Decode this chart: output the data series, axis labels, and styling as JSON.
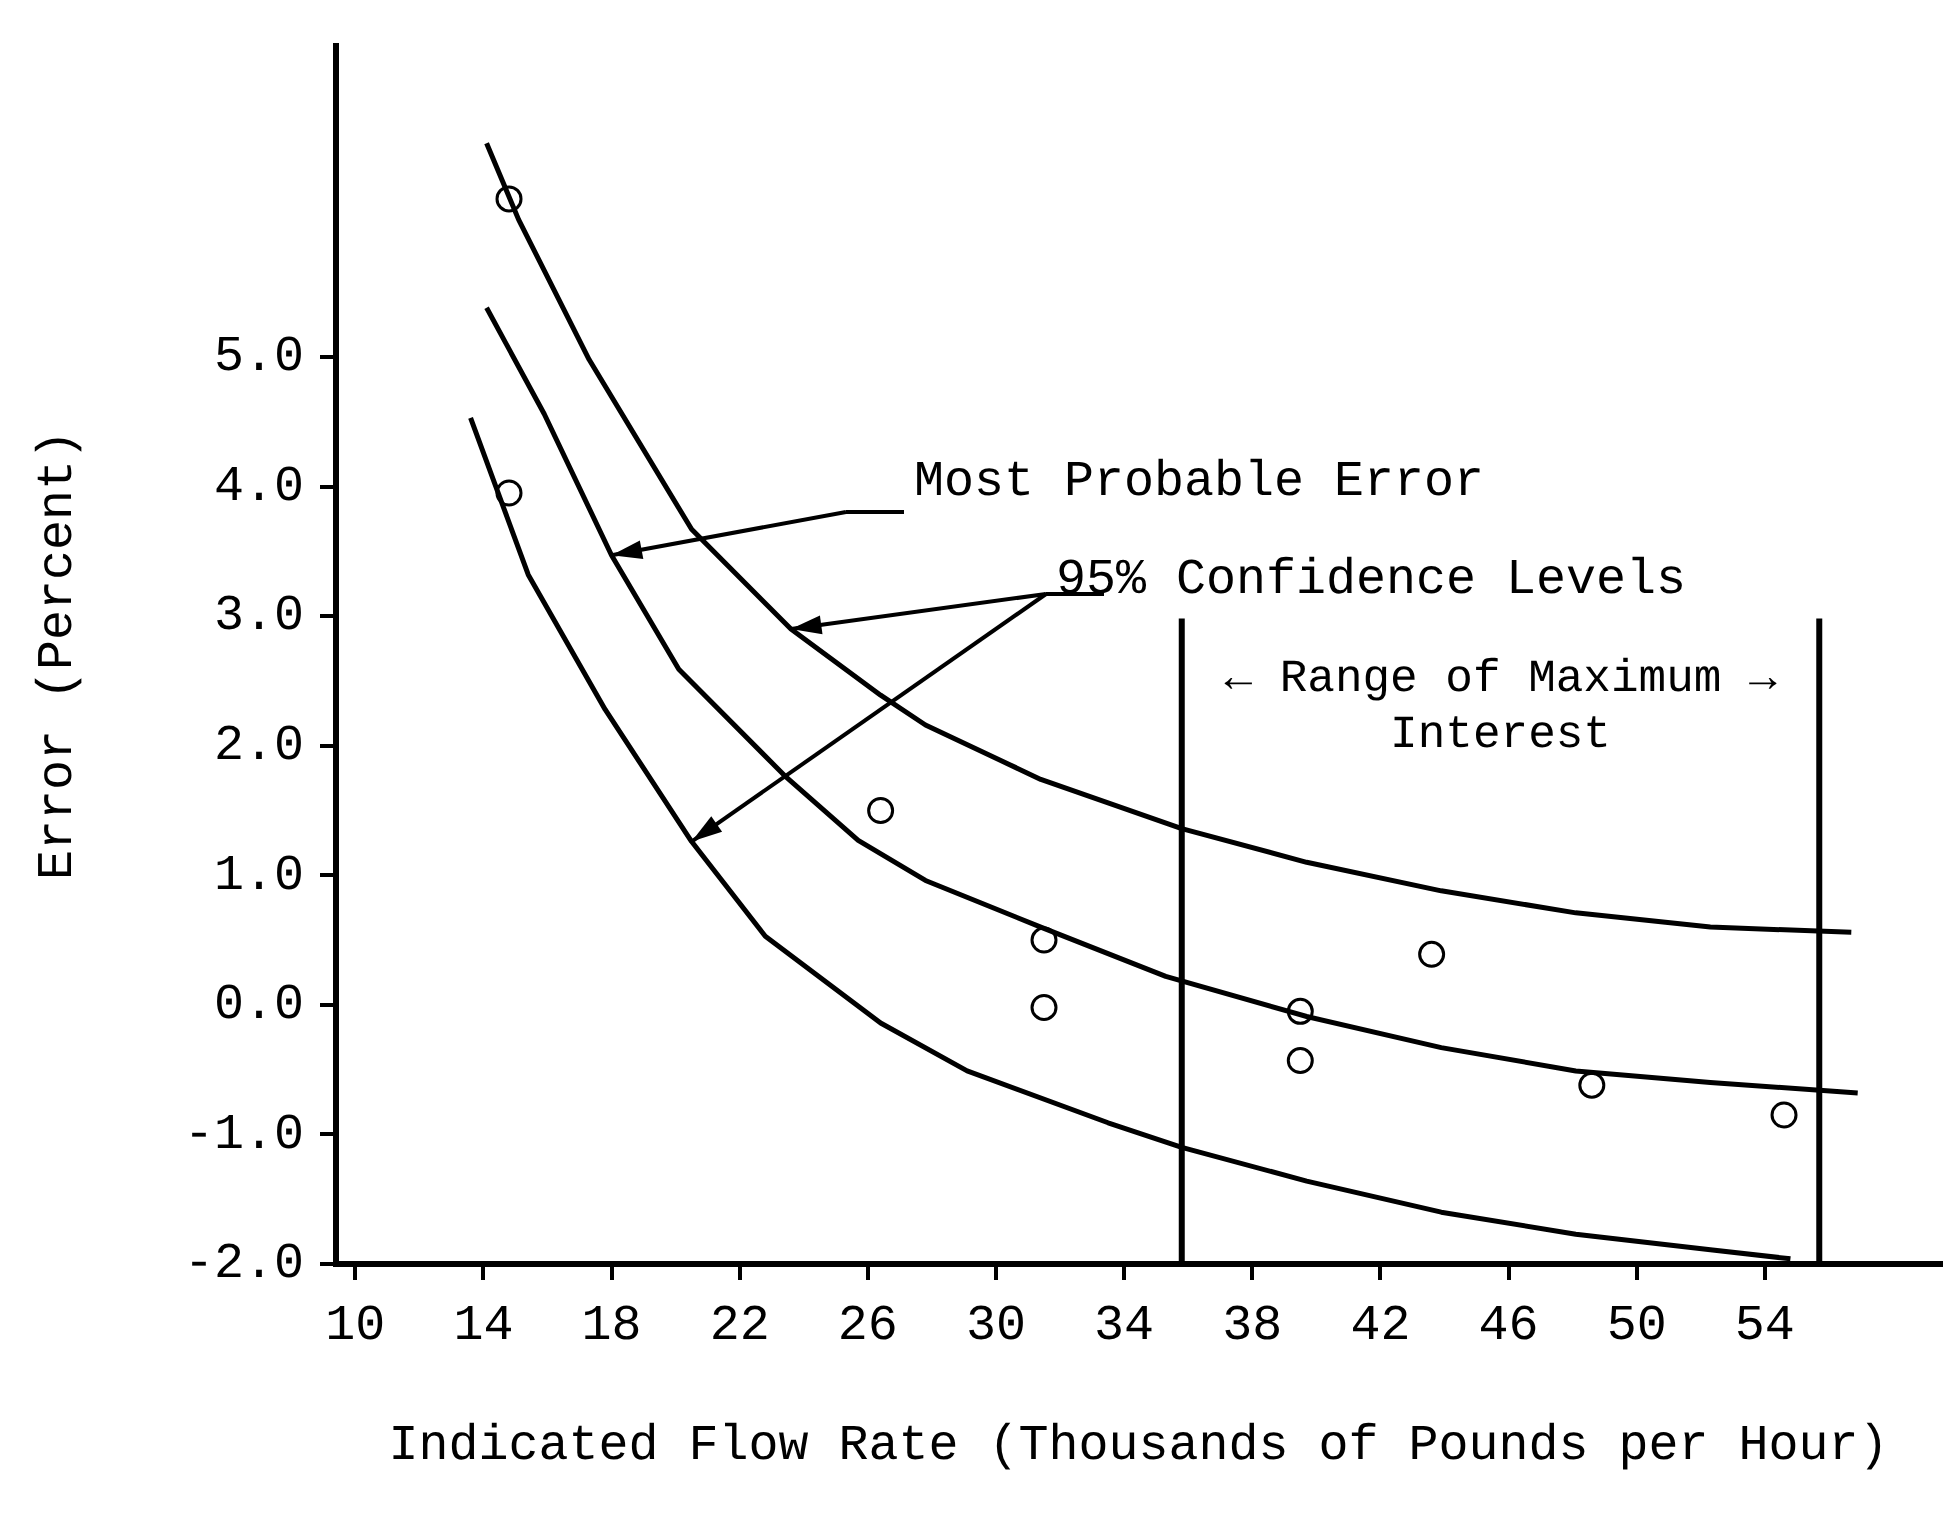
{
  "chart_data": {
    "type": "line",
    "xlabel": "Indicated Flow Rate (Thousands of Pounds per Hour)",
    "ylabel": "Error (Percent)",
    "xlim": [
      9.4,
      59.5
    ],
    "ylim": [
      -2.0,
      7.4
    ],
    "xticks": [
      10,
      14,
      18,
      22,
      26,
      30,
      34,
      38,
      42,
      46,
      50,
      54
    ],
    "yticks": [
      {
        "value": -2,
        "label": "-2.0"
      },
      {
        "value": -1,
        "label": "-1.0"
      },
      {
        "value": 0,
        "label": "0.0"
      },
      {
        "value": 1,
        "label": "1.0"
      },
      {
        "value": 2,
        "label": "2.0"
      },
      {
        "value": 3,
        "label": "3.0"
      },
      {
        "value": 4,
        "label": "4.0"
      },
      {
        "value": 5,
        "label": "5.0"
      }
    ],
    "legend": false,
    "series": [
      {
        "color": "#000000",
        "marker": "none",
        "line_style": "solid",
        "x": [
          14.1,
          15.1,
          17.3,
          20.5,
          23.6,
          26.4,
          27.8,
          31.4,
          35.8,
          39.7,
          43.9,
          48.1,
          52.3,
          56.7
        ],
        "values": [
          6.65,
          6.06,
          4.98,
          3.67,
          2.9,
          2.39,
          2.16,
          1.74,
          1.36,
          1.1,
          0.88,
          0.71,
          0.6,
          0.56
        ]
      },
      {
        "color": "#000000",
        "marker": "none",
        "line_style": "solid",
        "x": [
          14.1,
          15.9,
          18.0,
          20.1,
          23.4,
          25.7,
          27.8,
          31.4,
          35.3,
          39.7,
          43.9,
          48.1,
          52.3,
          56.9
        ],
        "values": [
          5.38,
          4.56,
          3.47,
          2.59,
          1.77,
          1.27,
          0.96,
          0.6,
          0.22,
          -0.09,
          -0.33,
          -0.51,
          -0.6,
          -0.68
        ]
      },
      {
        "color": "#000000",
        "marker": "none",
        "line_style": "solid",
        "x": [
          13.6,
          15.4,
          17.8,
          20.5,
          22.8,
          26.4,
          29.1,
          33.5,
          35.8,
          39.7,
          43.9,
          48.1,
          52.3,
          54.8
        ],
        "values": [
          4.53,
          3.32,
          2.28,
          1.26,
          0.53,
          -0.14,
          -0.51,
          -0.91,
          -1.1,
          -1.36,
          -1.6,
          -1.77,
          -1.89,
          -1.96
        ]
      },
      {
        "type": "scatter",
        "color": "#000000",
        "marker": "circle",
        "x": [
          14.8,
          14.8,
          26.4,
          31.5,
          31.5,
          39.5,
          39.5,
          43.6,
          48.6,
          54.6
        ],
        "values": [
          6.22,
          3.95,
          1.5,
          0.5,
          -0.02,
          -0.05,
          -0.43,
          0.39,
          -0.62,
          -0.85
        ]
      }
    ],
    "ref_lines": [
      {
        "axis": "x",
        "value": 35.8,
        "label": "← Range of Maximum → Interest",
        "color": "#000000"
      },
      {
        "axis": "x",
        "value": 55.7,
        "color": "#000000"
      }
    ],
    "annotations": [
      "Most Probable Error",
      {
        "text": "95% Confidence Levels",
        "x": 23.6,
        "y": 2.9
      }
    ]
  }
}
